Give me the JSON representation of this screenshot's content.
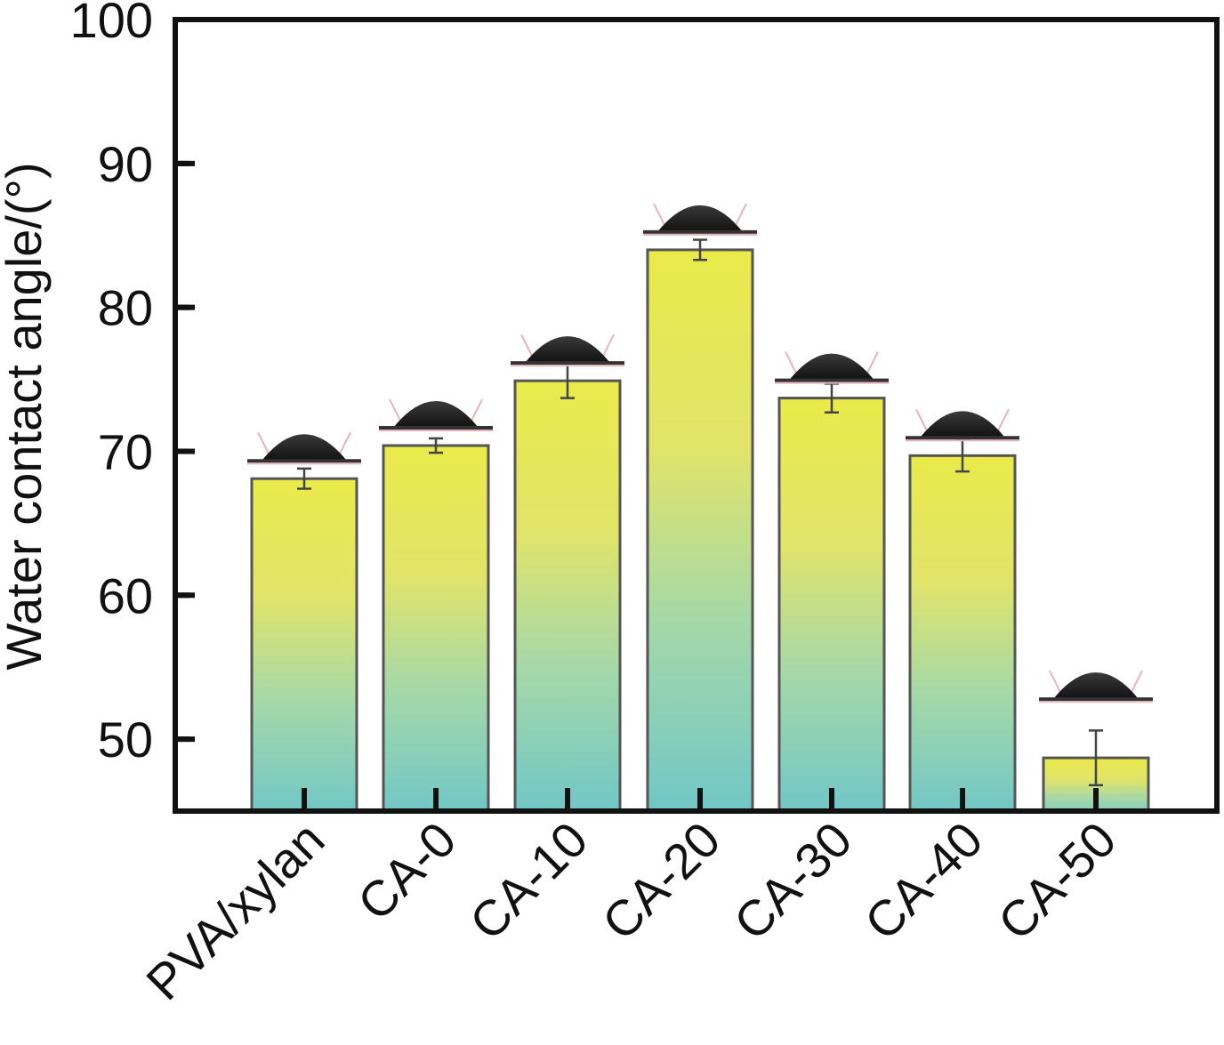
{
  "chart_data": {
    "type": "bar",
    "title": "",
    "xlabel": "",
    "ylabel": "Water contact angle/(°)",
    "ylim": [
      45,
      100
    ],
    "yticks": [
      50,
      60,
      70,
      80,
      90,
      100
    ],
    "categories": [
      "PVA/xylan",
      "CA-0",
      "CA-10",
      "CA-20",
      "CA-30",
      "CA-40",
      "CA-50"
    ],
    "values": [
      68.1,
      70.4,
      74.9,
      84.0,
      73.7,
      69.7,
      48.7
    ],
    "errors": [
      0.7,
      0.5,
      1.2,
      0.7,
      1.0,
      1.1,
      1.9
    ],
    "grid": false,
    "legend": "none",
    "colors": {
      "bar_top": "#eaea4a",
      "bar_bottom": "#6ec6c8",
      "bar_edge": "#555555",
      "droplet": "#1e1e1e",
      "axis": "#111111"
    },
    "droplet_icon": "water-droplet-image"
  }
}
